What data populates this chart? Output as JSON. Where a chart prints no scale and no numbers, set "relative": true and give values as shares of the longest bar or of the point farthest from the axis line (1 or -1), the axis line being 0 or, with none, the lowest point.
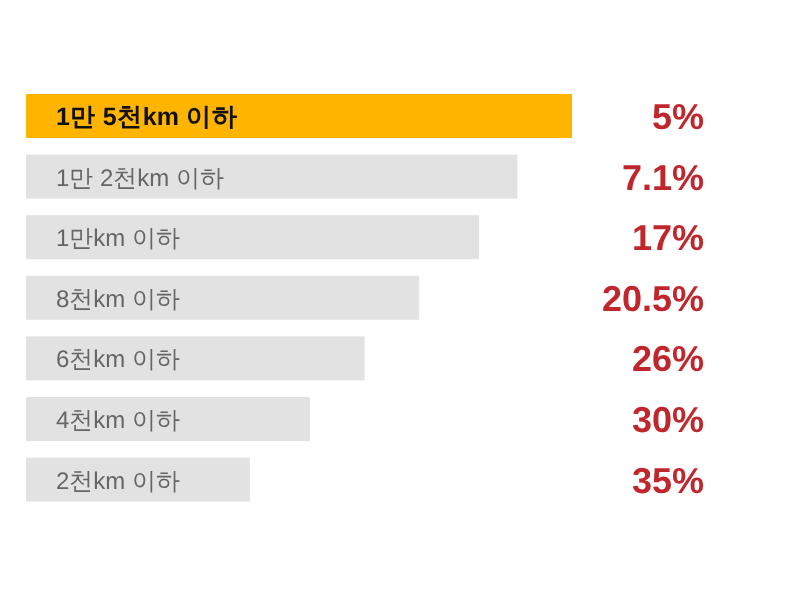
{
  "chart_data": {
    "type": "bar",
    "orientation": "horizontal",
    "relative": true,
    "categories": [
      "1만 5천km 이하",
      "1만 2천km 이하",
      "1만km 이하",
      "8천km 이하",
      "6천km 이하",
      "4천km 이하",
      "2천km 이하"
    ],
    "values": [
      1,
      0.9,
      0.83,
      0.72,
      0.62,
      0.52,
      0.41
    ],
    "colors": [
      "#ffb400",
      "#e2e2e2",
      "#e2e2e2",
      "#e2e2e2",
      "#e2e2e2",
      "#e2e2e2",
      "#e2e2e2"
    ],
    "annotations": [
      "5%",
      "7.1%",
      "17%",
      "20.5%",
      "26%",
      "30%",
      "35%"
    ]
  }
}
